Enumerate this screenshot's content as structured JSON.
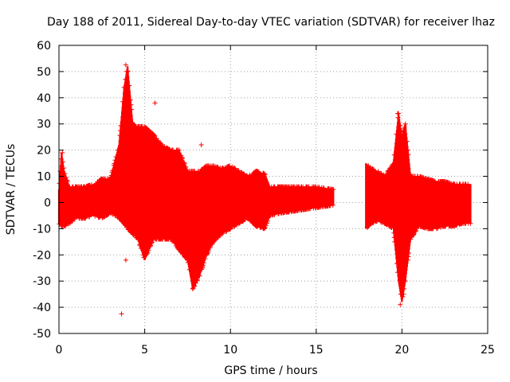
{
  "chart_data": {
    "type": "scatter",
    "title": "Day 188 of 2011, Sidereal Day-to-day VTEC variation (SDTVAR) for receiver lhaz",
    "xlabel": "GPS time / hours",
    "ylabel": "SDTVAR / TECUs",
    "xlim": [
      0,
      25
    ],
    "ylim": [
      -50,
      60
    ],
    "xticks": [
      0,
      5,
      10,
      15,
      20,
      25
    ],
    "yticks": [
      -50,
      -40,
      -30,
      -20,
      -10,
      0,
      10,
      20,
      30,
      40,
      50,
      60
    ],
    "grid": true,
    "marker": "+",
    "color": "#ff0000",
    "series": [
      {
        "name": "SDTVAR",
        "description_points_sampled": true,
        "envelope": [
          [
            0.0,
            -8,
            5
          ],
          [
            0.15,
            -9,
            19
          ],
          [
            0.3,
            -9,
            12
          ],
          [
            0.6,
            -8,
            6
          ],
          [
            1.0,
            -6,
            6
          ],
          [
            1.5,
            -6,
            6
          ],
          [
            2.0,
            -5,
            7
          ],
          [
            2.5,
            -6,
            9
          ],
          [
            3.0,
            -4,
            9
          ],
          [
            3.5,
            -6,
            22
          ],
          [
            3.8,
            -8,
            44
          ],
          [
            4.0,
            -10,
            52
          ],
          [
            4.3,
            -12,
            30
          ],
          [
            4.6,
            -14,
            29
          ],
          [
            5.0,
            -22,
            29
          ],
          [
            5.5,
            -14,
            26
          ],
          [
            6.0,
            -14,
            22
          ],
          [
            6.5,
            -14,
            20
          ],
          [
            7.0,
            -18,
            20
          ],
          [
            7.5,
            -22,
            12
          ],
          [
            7.8,
            -33,
            12
          ],
          [
            8.2,
            -28,
            12
          ],
          [
            8.6,
            -20,
            14
          ],
          [
            9.0,
            -15,
            14
          ],
          [
            9.5,
            -12,
            13
          ],
          [
            10.0,
            -10,
            14
          ],
          [
            10.5,
            -8,
            12
          ],
          [
            11.0,
            -6,
            10
          ],
          [
            11.5,
            -9,
            12
          ],
          [
            12.0,
            -10,
            11
          ],
          [
            12.3,
            -5,
            6
          ],
          [
            13.0,
            -4,
            6
          ],
          [
            14.0,
            -3,
            6
          ],
          [
            15.0,
            -2,
            6
          ],
          [
            16.0,
            -1,
            5
          ],
          [
            17.9,
            -10,
            15
          ],
          [
            18.2,
            -8,
            13
          ],
          [
            18.6,
            -7,
            12
          ],
          [
            19.0,
            -8,
            10
          ],
          [
            19.5,
            -10,
            15
          ],
          [
            19.8,
            -30,
            34
          ],
          [
            20.0,
            -38,
            25
          ],
          [
            20.2,
            -30,
            30
          ],
          [
            20.5,
            -14,
            10
          ],
          [
            21.0,
            -9,
            10
          ],
          [
            21.5,
            -10,
            9
          ],
          [
            22.0,
            -10,
            8
          ],
          [
            22.5,
            -9,
            8
          ],
          [
            23.0,
            -9,
            7
          ],
          [
            23.5,
            -8,
            7
          ],
          [
            24.0,
            -8,
            7
          ]
        ],
        "outliers": [
          [
            3.65,
            -42.5
          ],
          [
            3.9,
            52.5
          ],
          [
            3.9,
            -22
          ],
          [
            5.6,
            38
          ],
          [
            8.3,
            22
          ],
          [
            19.75,
            34
          ],
          [
            19.9,
            -39
          ],
          [
            20.1,
            -35
          ],
          [
            4.0,
            44.5
          ],
          [
            0.2,
            19
          ]
        ]
      }
    ]
  }
}
